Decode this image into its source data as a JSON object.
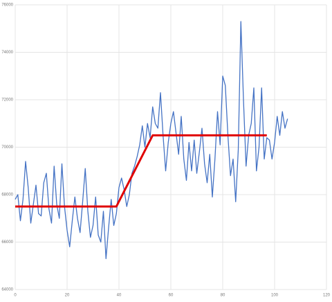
{
  "chart_data": {
    "type": "line",
    "xlim": [
      0,
      120
    ],
    "xticks": [
      0,
      20,
      40,
      60,
      80,
      100,
      120
    ],
    "ylim": [
      64000,
      76000
    ],
    "yticks": [
      64000,
      66000,
      68000,
      70000,
      72000,
      74000,
      76000
    ],
    "grid": true,
    "series": [
      {
        "color": "#4472c4",
        "width": 1.3,
        "x": [
          0,
          1,
          2,
          3,
          4,
          5,
          6,
          7,
          8,
          9,
          10,
          11,
          12,
          13,
          14,
          15,
          16,
          17,
          18,
          19,
          20,
          21,
          22,
          23,
          24,
          25,
          26,
          27,
          28,
          29,
          30,
          31,
          32,
          33,
          34,
          35,
          36,
          37,
          38,
          39,
          40,
          41,
          42,
          43,
          44,
          45,
          46,
          47,
          48,
          49,
          50,
          51,
          52,
          53,
          54,
          55,
          56,
          57,
          58,
          59,
          60,
          61,
          62,
          63,
          64,
          65,
          66,
          67,
          68,
          69,
          70,
          71,
          72,
          73,
          74,
          75,
          76,
          77,
          78,
          79,
          80,
          81,
          82,
          83,
          84,
          85,
          86,
          87,
          88,
          89,
          90,
          91,
          92,
          93,
          94,
          95,
          96,
          97,
          98,
          99,
          100,
          101,
          102,
          103,
          104,
          105
        ],
        "values": [
          67800,
          68000,
          66900,
          67800,
          69400,
          68300,
          66800,
          67600,
          68400,
          67200,
          67100,
          68500,
          68900,
          67400,
          66800,
          69200,
          67600,
          67000,
          69300,
          67500,
          66500,
          65800,
          66900,
          67900,
          67000,
          66400,
          67700,
          69100,
          67300,
          66200,
          66700,
          67900,
          66300,
          66000,
          67300,
          65300,
          66600,
          67800,
          66700,
          67200,
          68300,
          68700,
          68200,
          67500,
          68000,
          68900,
          69200,
          69600,
          70100,
          70900,
          70000,
          71000,
          70400,
          71700,
          71000,
          70800,
          72300,
          70500,
          69000,
          70200,
          71000,
          71500,
          70600,
          69700,
          71300,
          69500,
          68600,
          70200,
          69000,
          70300,
          68900,
          69800,
          70800,
          69300,
          68500,
          69700,
          67900,
          69500,
          71500,
          70100,
          73000,
          72600,
          70500,
          68800,
          69500,
          67700,
          69900,
          75300,
          72000,
          69200,
          70500,
          71000,
          72500,
          69000,
          70000,
          72500,
          69500,
          70400,
          70300,
          69500,
          70200,
          71300,
          70500,
          71500,
          70800,
          71200
        ]
      },
      {
        "color": "#e00000",
        "width": 3,
        "x": [
          0,
          39,
          53,
          97
        ],
        "values": [
          67500,
          67500,
          70500,
          70500
        ]
      }
    ]
  }
}
